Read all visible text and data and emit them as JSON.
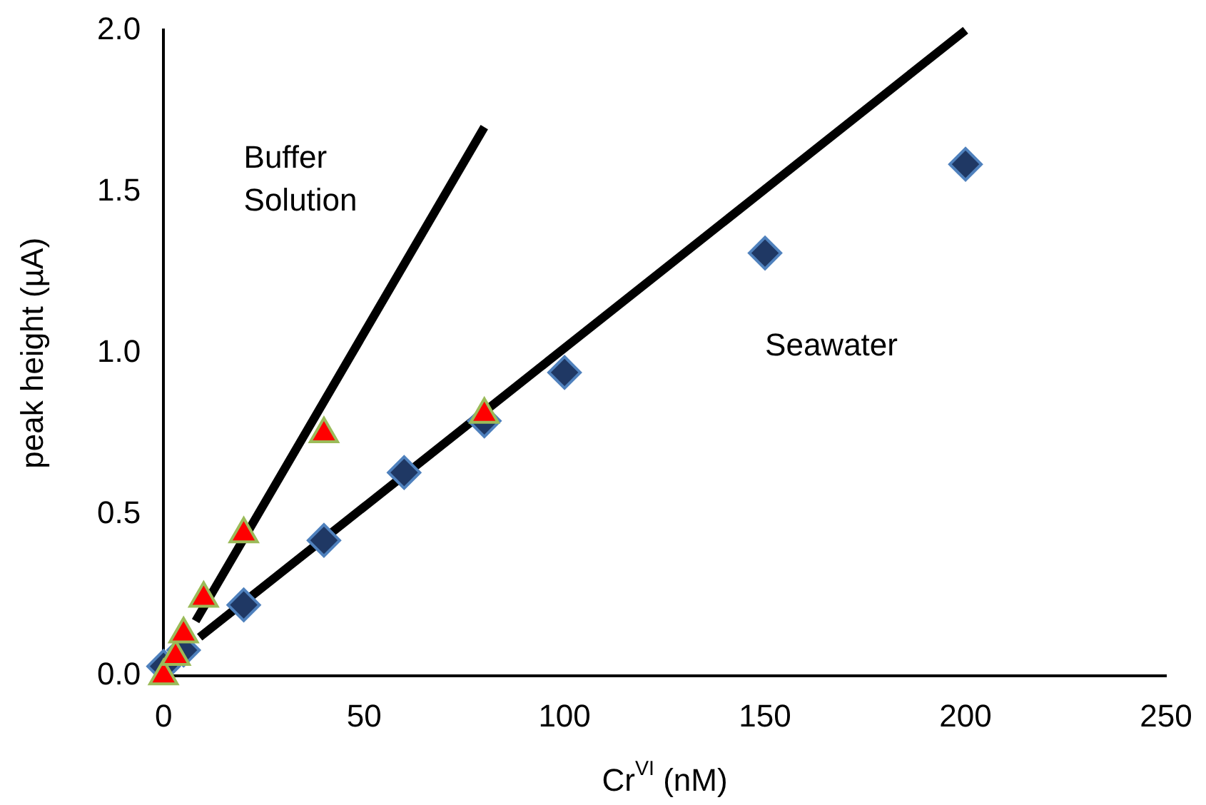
{
  "chart_data": {
    "type": "scatter",
    "xlabel": "Cr$^{VI}$ (nM)",
    "ylabel": "peak height (µA)",
    "xlim": [
      0,
      250
    ],
    "xticks": [
      0,
      50,
      100,
      150,
      200,
      250
    ],
    "ylim": [
      0,
      2
    ],
    "yticks": [
      {
        "value": 0,
        "label": "0.0"
      },
      {
        "value": 0.5,
        "label": "0.5"
      },
      {
        "value": 1,
        "label": "1.0"
      },
      {
        "value": 1.5,
        "label": "1.5"
      },
      {
        "value": 2,
        "label": "2.0"
      }
    ],
    "grid": false,
    "legend": false,
    "series": [
      {
        "type": "line",
        "color": "#000000",
        "marker": "none",
        "x": [
          9,
          200
        ],
        "values": [
          0.12,
          2.0
        ]
      },
      {
        "type": "line",
        "color": "#000000",
        "marker": "none",
        "x": [
          8,
          80
        ],
        "values": [
          0.17,
          1.7
        ]
      },
      {
        "color": "#1f3864",
        "marker": "diamond",
        "x": [
          0,
          5,
          20,
          40,
          60,
          80,
          100,
          150,
          200
        ],
        "values": [
          0.03,
          0.08,
          0.22,
          0.42,
          0.63,
          0.79,
          0.94,
          1.31,
          1.585
        ]
      },
      {
        "color": "#ff0000",
        "marker": "triangle",
        "x": [
          0,
          3,
          5,
          10,
          20,
          40,
          80
        ],
        "values": [
          0.0,
          0.06,
          0.13,
          0.24,
          0.44,
          0.75,
          0.81
        ]
      }
    ],
    "annotations": [
      "Buffer\nSolution",
      "Seawater"
    ]
  }
}
